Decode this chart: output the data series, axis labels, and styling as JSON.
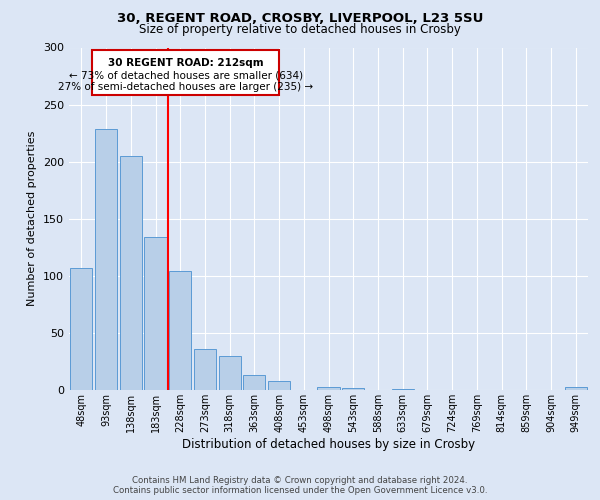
{
  "title_line1": "30, REGENT ROAD, CROSBY, LIVERPOOL, L23 5SU",
  "title_line2": "Size of property relative to detached houses in Crosby",
  "xlabel": "Distribution of detached houses by size in Crosby",
  "ylabel": "Number of detached properties",
  "categories": [
    "48sqm",
    "93sqm",
    "138sqm",
    "183sqm",
    "228sqm",
    "273sqm",
    "318sqm",
    "363sqm",
    "408sqm",
    "453sqm",
    "498sqm",
    "543sqm",
    "588sqm",
    "633sqm",
    "679sqm",
    "724sqm",
    "769sqm",
    "814sqm",
    "859sqm",
    "904sqm",
    "949sqm"
  ],
  "values": [
    107,
    229,
    205,
    134,
    104,
    36,
    30,
    13,
    8,
    0,
    3,
    2,
    0,
    1,
    0,
    0,
    0,
    0,
    0,
    0,
    3
  ],
  "bar_color": "#b8cfe8",
  "bar_edge_color": "#5b9bd5",
  "background_color": "#dce6f5",
  "plot_bg_color": "#dce6f5",
  "grid_color": "#ffffff",
  "red_line_x": 3.5,
  "annotation_box_text_line1": "30 REGENT ROAD: 212sqm",
  "annotation_box_text_line2": "← 73% of detached houses are smaller (634)",
  "annotation_box_text_line3": "27% of semi-detached houses are larger (235) →",
  "annotation_box_color": "#cc0000",
  "ylim": [
    0,
    300
  ],
  "yticks": [
    0,
    50,
    100,
    150,
    200,
    250,
    300
  ],
  "footer_line1": "Contains HM Land Registry data © Crown copyright and database right 2024.",
  "footer_line2": "Contains public sector information licensed under the Open Government Licence v3.0."
}
